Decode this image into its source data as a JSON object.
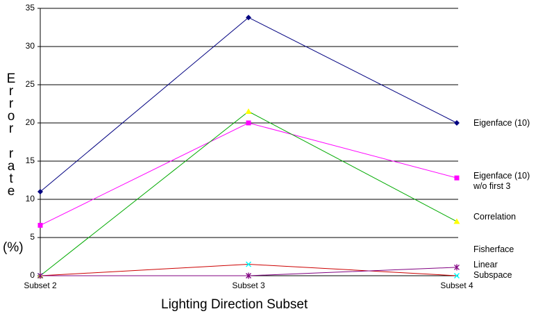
{
  "chart_data": {
    "type": "line",
    "categories": [
      "Subset 2",
      "Subset 3",
      "Subset 4"
    ],
    "series": [
      {
        "name": "Eigenface (10)",
        "values": [
          11.0,
          33.8,
          20.0
        ],
        "color": "#000080",
        "marker": "diamond"
      },
      {
        "name": "Eigenface (10) w/o first 3",
        "values": [
          6.6,
          20.0,
          12.8
        ],
        "color": "#ff00ff",
        "marker": "square"
      },
      {
        "name": "Correlation",
        "values": [
          0.0,
          21.5,
          7.1
        ],
        "color": "#ffff00",
        "line_color": "#00aa00",
        "marker": "triangle"
      },
      {
        "name": "Fisherface",
        "values": [
          0.0,
          1.5,
          0.0
        ],
        "color": "#00ffff",
        "line_color": "#cc0000",
        "marker": "x"
      },
      {
        "name": "Linear Subspace",
        "values": [
          0.0,
          0.0,
          1.1
        ],
        "color": "#800080",
        "marker": "asterisk"
      }
    ],
    "ylim": [
      0,
      35
    ],
    "yticks": [
      0,
      5,
      10,
      15,
      20,
      25,
      30,
      35
    ],
    "ylabel": "Error rate (%)",
    "xlabel": "Lighting Direction Subset",
    "grid": true,
    "legend_position": "right"
  },
  "ylabel_letters_top": [
    "E",
    "r",
    "r",
    "o",
    "r"
  ],
  "ylabel_letters_bottom": [
    "r",
    "a",
    "t",
    "e"
  ],
  "ylabel_unit": "(%)",
  "xlabel": "Lighting Direction Subset",
  "legend": {
    "eigenface": "Eigenface (10)",
    "eigenface_wo_line1": "Eigenface (10)",
    "eigenface_wo_line2": "w/o first 3",
    "correlation": "Correlation",
    "fisherface": "Fisherface",
    "linear_line1": "Linear",
    "linear_line2": "Subspace"
  }
}
